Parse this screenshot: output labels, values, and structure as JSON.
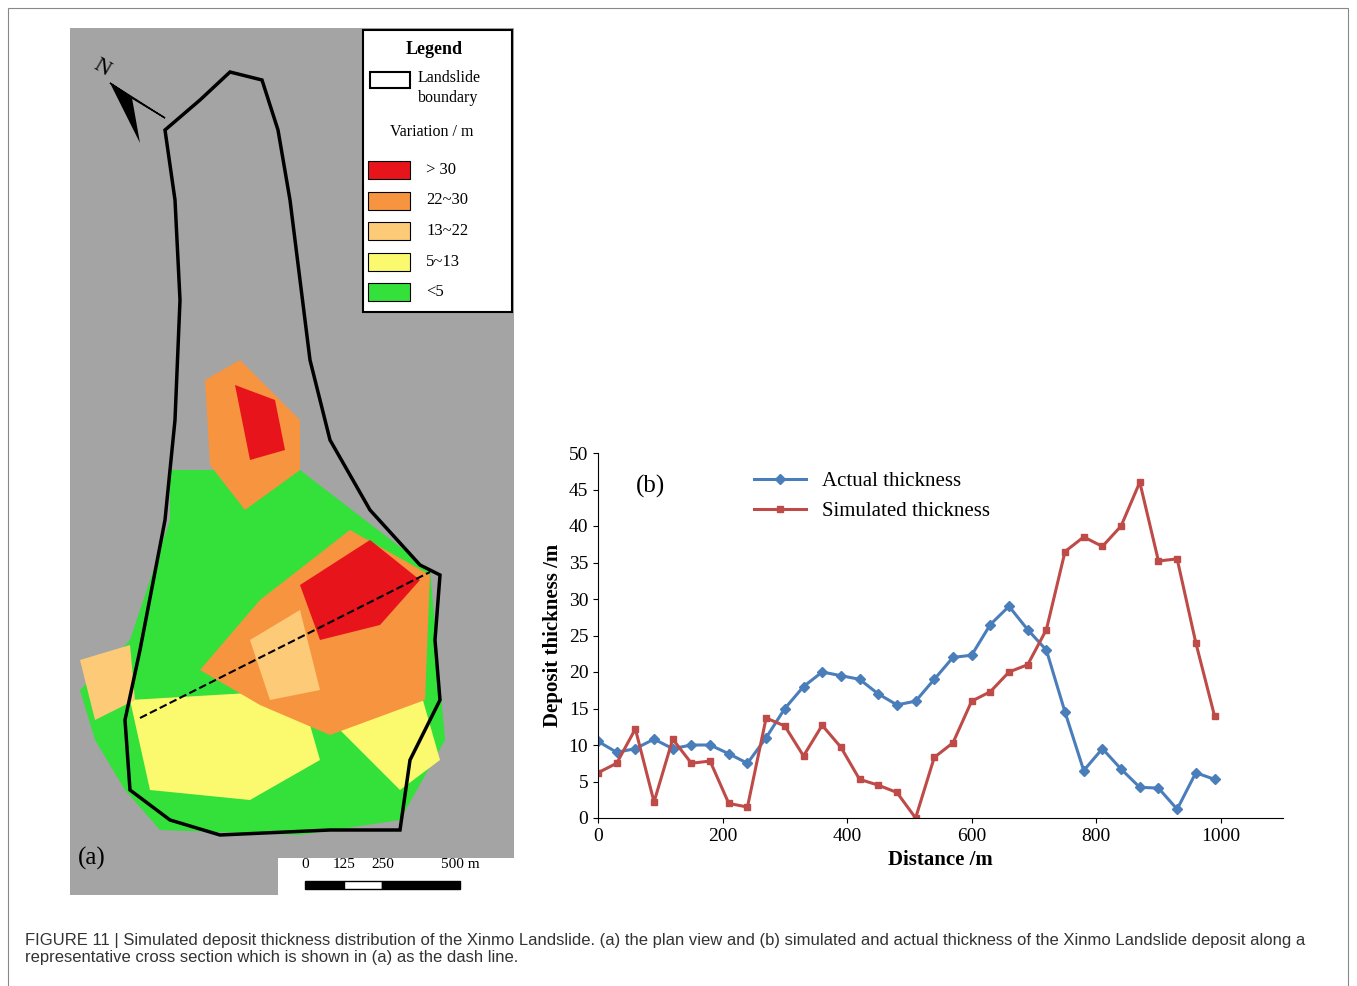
{
  "caption": "FIGURE 11 | Simulated deposit thickness distribution of the Xinmo Landslide. (a) the plan view and (b) simulated and actual thickness of the Xinmo Landslide deposit along a representative cross section which is shown in (a) as the dash line.",
  "panel_a": {
    "label": "(a)",
    "north": "N",
    "legend": {
      "title": "Legend",
      "boundary": "Landslide\nboundary",
      "variation_title": "Variation / m",
      "items": [
        {
          "label": "> 30",
          "color": "#e8141c"
        },
        {
          "label": "22~30",
          "color": "#f7943f"
        },
        {
          "label": "13~22",
          "color": "#fdca78"
        },
        {
          "label": "5~13",
          "color": "#fbfa6e"
        },
        {
          "label": "<5",
          "color": "#34e03a"
        }
      ]
    },
    "scale_bar": {
      "ticks": [
        {
          "value": 0,
          "label": "0"
        },
        {
          "value": 125,
          "label": "125"
        },
        {
          "value": 250,
          "label": "250"
        },
        {
          "value": 500,
          "label": "500 m"
        }
      ]
    }
  },
  "chart_data": {
    "type": "line",
    "label": "(b)",
    "x_label": "Distance /m",
    "y_label": "Deposit thickness /m",
    "x": [
      0,
      30,
      60,
      90,
      120,
      150,
      180,
      210,
      240,
      270,
      300,
      330,
      360,
      390,
      420,
      450,
      480,
      510,
      540,
      570,
      600,
      630,
      660,
      690,
      720,
      750,
      780,
      810,
      840,
      870,
      900,
      930,
      960,
      990
    ],
    "series": [
      {
        "name": "Actual thickness",
        "color": "#4a7ebb",
        "marker": "diamond",
        "values": [
          10.5,
          9,
          9.5,
          10.8,
          9.5,
          10,
          10,
          8.8,
          7.5,
          11,
          15,
          18,
          20,
          19.5,
          19,
          17,
          15.5,
          16,
          19,
          22,
          22.3,
          26.5,
          29,
          25.8,
          23,
          14.5,
          6.5,
          9.5,
          6.7,
          4.2,
          4.1,
          1.2,
          6.2,
          5.3
        ]
      },
      {
        "name": "Simulated thickness",
        "color": "#be4b48",
        "marker": "square",
        "values": [
          6.2,
          7.5,
          12.2,
          2.2,
          10.8,
          7.5,
          7.8,
          2,
          1.5,
          13.7,
          12.6,
          8.5,
          12.7,
          9.7,
          5.3,
          4.5,
          3.5,
          0,
          8.3,
          10.3,
          16,
          17.3,
          20,
          21,
          25.8,
          36.5,
          38.5,
          37.2,
          40,
          46,
          35.2,
          35.5,
          24,
          14
        ]
      }
    ],
    "xlim": [
      0,
      1100
    ],
    "xticks": [
      0,
      200,
      400,
      600,
      800,
      1000
    ],
    "ylim": [
      0,
      50
    ],
    "yticks": [
      0,
      5,
      10,
      15,
      20,
      25,
      30,
      35,
      40,
      45,
      50
    ],
    "grid": false,
    "legend": "upper left"
  }
}
